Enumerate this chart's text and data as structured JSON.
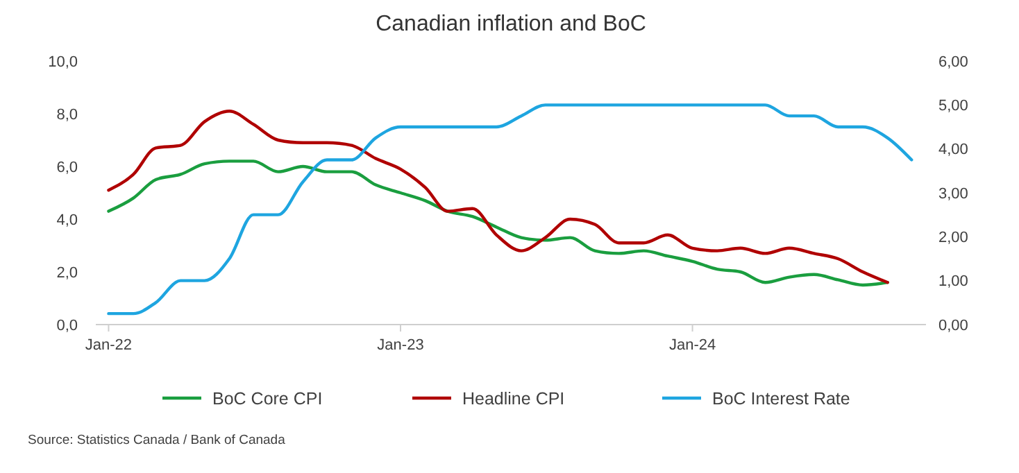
{
  "chart_data": {
    "type": "line",
    "title": "Canadian inflation and BoC",
    "x": [
      "2022-01",
      "2022-02",
      "2022-03",
      "2022-04",
      "2022-05",
      "2022-06",
      "2022-07",
      "2022-08",
      "2022-09",
      "2022-10",
      "2022-11",
      "2022-12",
      "2023-01",
      "2023-02",
      "2023-03",
      "2023-04",
      "2023-05",
      "2023-06",
      "2023-07",
      "2023-08",
      "2023-09",
      "2023-10",
      "2023-11",
      "2023-12",
      "2024-01",
      "2024-02",
      "2024-03",
      "2024-04",
      "2024-05",
      "2024-06",
      "2024-07",
      "2024-08",
      "2024-09",
      "2024-10"
    ],
    "series": [
      {
        "name": "BoC Core CPI",
        "color": "#1a9e3f",
        "values": [
          4.3,
          4.8,
          5.5,
          5.7,
          6.1,
          6.2,
          6.2,
          5.8,
          6.0,
          5.8,
          5.8,
          5.3,
          5.0,
          4.7,
          4.3,
          4.1,
          3.7,
          3.3,
          3.2,
          3.3,
          2.8,
          2.7,
          2.8,
          2.6,
          2.4,
          2.1,
          2.0,
          1.6,
          1.8,
          1.9,
          1.7,
          1.5,
          1.6,
          null
        ]
      },
      {
        "name": "Headline CPI",
        "color": "#b00000",
        "values": [
          5.1,
          5.7,
          6.7,
          6.8,
          7.7,
          8.1,
          7.6,
          7.0,
          6.9,
          6.9,
          6.8,
          6.3,
          5.9,
          5.2,
          4.3,
          4.4,
          3.4,
          2.8,
          3.3,
          4.0,
          3.8,
          3.1,
          3.1,
          3.4,
          2.9,
          2.8,
          2.9,
          2.7,
          2.9,
          2.7,
          2.5,
          2.0,
          1.6,
          null
        ]
      },
      {
        "name": "BoC Interest Rate",
        "color": "#1ea5e0",
        "axis": "y2",
        "values": [
          0.25,
          0.25,
          0.5,
          1.0,
          1.0,
          1.5,
          2.5,
          2.5,
          3.25,
          3.75,
          3.75,
          4.25,
          4.5,
          4.5,
          4.5,
          4.5,
          4.5,
          4.75,
          5,
          5,
          5,
          5,
          5,
          5,
          5,
          5,
          5,
          5,
          4.75,
          4.75,
          4.5,
          4.5,
          4.25,
          3.75
        ]
      }
    ],
    "xlim": [
      "2021-12-16",
      "2024-10-19"
    ],
    "xticks": [
      {
        "value": "2022-01",
        "label": "Jan-22"
      },
      {
        "value": "2023-01",
        "label": "Jan-23"
      },
      {
        "value": "2024-01",
        "label": "Jan-24"
      }
    ],
    "ylim": [
      0,
      10
    ],
    "yticks": [
      {
        "value": 0,
        "label": "0,0"
      },
      {
        "value": 2,
        "label": "2,0"
      },
      {
        "value": 4,
        "label": "4,0"
      },
      {
        "value": 6,
        "label": "6,0"
      },
      {
        "value": 8,
        "label": "8,0"
      },
      {
        "value": 10,
        "label": "10,0"
      }
    ],
    "y2lim": [
      0,
      6
    ],
    "y2ticks": [
      {
        "value": 0,
        "label": "0,00"
      },
      {
        "value": 1,
        "label": "1,00"
      },
      {
        "value": 2,
        "label": "2,00"
      },
      {
        "value": 3,
        "label": "3,00"
      },
      {
        "value": 4,
        "label": "4,00"
      },
      {
        "value": 5,
        "label": "5,00"
      },
      {
        "value": 6,
        "label": "6,00"
      }
    ],
    "grid": false,
    "legend": "bottom",
    "annotations": [
      "Source: Statistics Canada / Bank of Canada"
    ]
  }
}
